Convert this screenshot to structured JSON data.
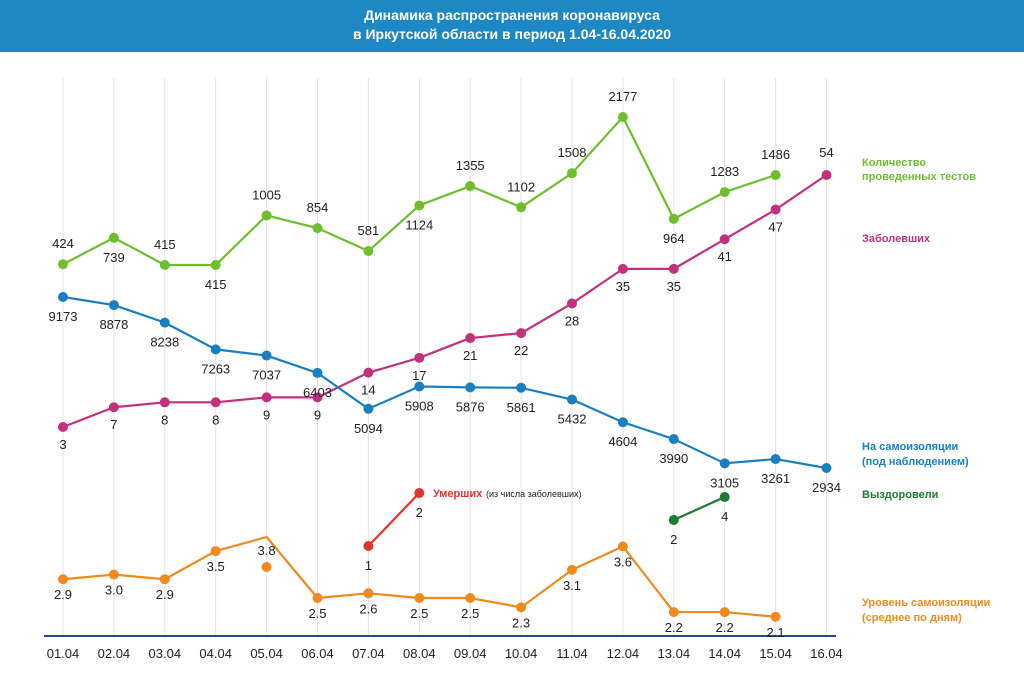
{
  "header": {
    "title_line1": "Динамика распространения коронавируса",
    "title_line2": "в Иркутской области в период  1.04-16.04.2020"
  },
  "chart_data": {
    "type": "line",
    "categories": [
      "01.04",
      "02.04",
      "03.04",
      "04.04",
      "05.04",
      "06.04",
      "07.04",
      "08.04",
      "09.04",
      "10.04",
      "11.04",
      "12.04",
      "13.04",
      "14.04",
      "15.04",
      "16.04"
    ],
    "series": [
      {
        "key": "tests",
        "name": "Количество проведенных тестов",
        "color": "#6fbe2e",
        "values": [
          424,
          739,
          415,
          415,
          1005,
          854,
          581,
          1124,
          1355,
          1102,
          1508,
          2177,
          964,
          1283,
          1486,
          null
        ],
        "labels": [
          "424",
          "739",
          "415",
          "415",
          "1005",
          "854",
          "581",
          "1124",
          "1355",
          "1102",
          "1508",
          "2177",
          "964",
          "1283",
          "1486",
          ""
        ]
      },
      {
        "key": "sick",
        "name": "Заболевших",
        "color": "#c2317e",
        "values": [
          3,
          7,
          8,
          8,
          9,
          9,
          14,
          17,
          21,
          22,
          28,
          35,
          35,
          41,
          47,
          54
        ],
        "labels": [
          "3",
          "7",
          "8",
          "8",
          "9",
          "9",
          "14",
          "17",
          "21",
          "22",
          "28",
          "35",
          "35",
          "41",
          "47",
          "54"
        ]
      },
      {
        "key": "isolation",
        "name": "На самоизоляции (под наблюдением)",
        "color": "#1a7fc1",
        "values": [
          9173,
          8878,
          8238,
          7263,
          7037,
          6403,
          5094,
          5908,
          5876,
          5861,
          5432,
          4604,
          3990,
          3105,
          3261,
          2934
        ],
        "labels": [
          "9173",
          "8878",
          "8238",
          "7263",
          "7037",
          "6403",
          "5094",
          "5908",
          "5876",
          "5861",
          "5432",
          "4604",
          "3990",
          "3105",
          "3261",
          "2934"
        ]
      },
      {
        "key": "dead",
        "name": "Умерших",
        "name_note": "(из числа заболевших)",
        "color": "#e2342a",
        "values": [
          null,
          null,
          null,
          null,
          null,
          null,
          1,
          2,
          null,
          null,
          null,
          null,
          null,
          null,
          null,
          null
        ],
        "labels": [
          "",
          "",
          "",
          "",
          "",
          "",
          "1",
          "2",
          "",
          "",
          "",
          "",
          "",
          "",
          "",
          ""
        ]
      },
      {
        "key": "recovered",
        "name": "Выздоровели",
        "color": "#1c7a35",
        "values": [
          null,
          null,
          null,
          null,
          null,
          null,
          null,
          null,
          null,
          null,
          null,
          null,
          2,
          4,
          null,
          null
        ],
        "labels": [
          "",
          "",
          "",
          "",
          "",
          "",
          "",
          "",
          "",
          "",
          "",
          "",
          "2",
          "4",
          "",
          ""
        ]
      },
      {
        "key": "level",
        "name": "Уровень самоизоляции (среднее по дням)",
        "color": "#ef8a1f",
        "values": [
          2.9,
          3.0,
          2.9,
          3.5,
          3.8,
          2.5,
          2.6,
          2.5,
          2.5,
          2.3,
          3.1,
          3.6,
          2.2,
          2.2,
          2.1,
          null
        ],
        "labels": [
          "2.9",
          "3.0",
          "2.9",
          "3.5",
          "3.8",
          "2.5",
          "2.6",
          "2.5",
          "2.5",
          "2.3",
          "3.1",
          "3.6",
          "2.2",
          "2.2",
          "2.1",
          ""
        ]
      }
    ],
    "legend": {
      "tests_line1": "Количество",
      "tests_line2": "проведенных тестов",
      "sick": "Заболевших",
      "isolation_line1": "На самоизоляции",
      "isolation_line2": "(под наблюдением)",
      "recovered": "Выздоровели",
      "dead": "Умерших",
      "dead_note": "(из числа заболевших)",
      "level_line1": "Уровень самоизоляции",
      "level_line2": "(среднее по дням)"
    },
    "grid": "vertical",
    "legend_placement": "right"
  }
}
